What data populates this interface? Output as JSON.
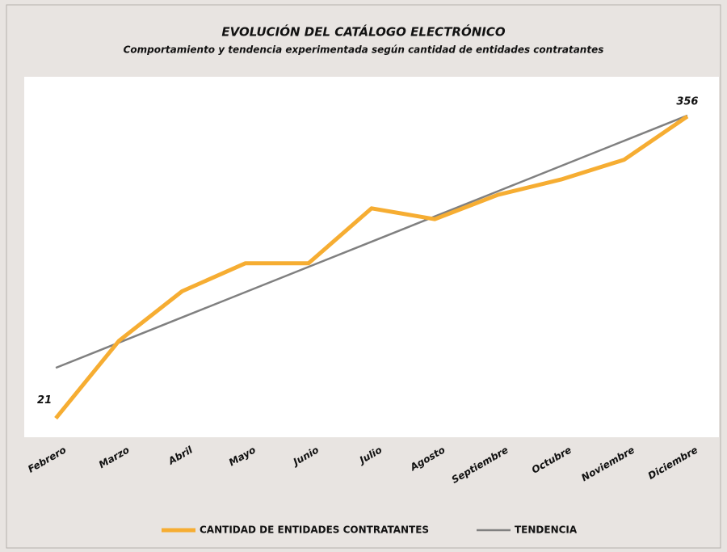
{
  "chart_data": {
    "type": "line",
    "title": "EVOLUCIÓN DEL CATÁLOGO  ELECTRÓNICO",
    "subtitle": "Comportamiento y tendencia experimentada según cantidad de entidades contratantes",
    "categories": [
      "Febrero",
      "Marzo",
      "Abril",
      "Mayo",
      "Junio",
      "Julio",
      "Agosto",
      "Septiembre",
      "Octubre",
      "Noviembre",
      "Diciembre"
    ],
    "series": [
      {
        "name": "CANTIDAD DE ENTIDADES CONTRATANTES",
        "color": "#f6ad32",
        "values": [
          21,
          107,
          162,
          193,
          193,
          254,
          242,
          269,
          286,
          308,
          356
        ]
      },
      {
        "name": "TENDENCIA",
        "color": "#808080",
        "values": [
          77,
          105,
          133,
          161,
          189,
          217,
          245,
          273,
          301,
          329,
          357
        ]
      }
    ],
    "ylim": [
      0,
      400
    ],
    "legend": "bottom"
  }
}
